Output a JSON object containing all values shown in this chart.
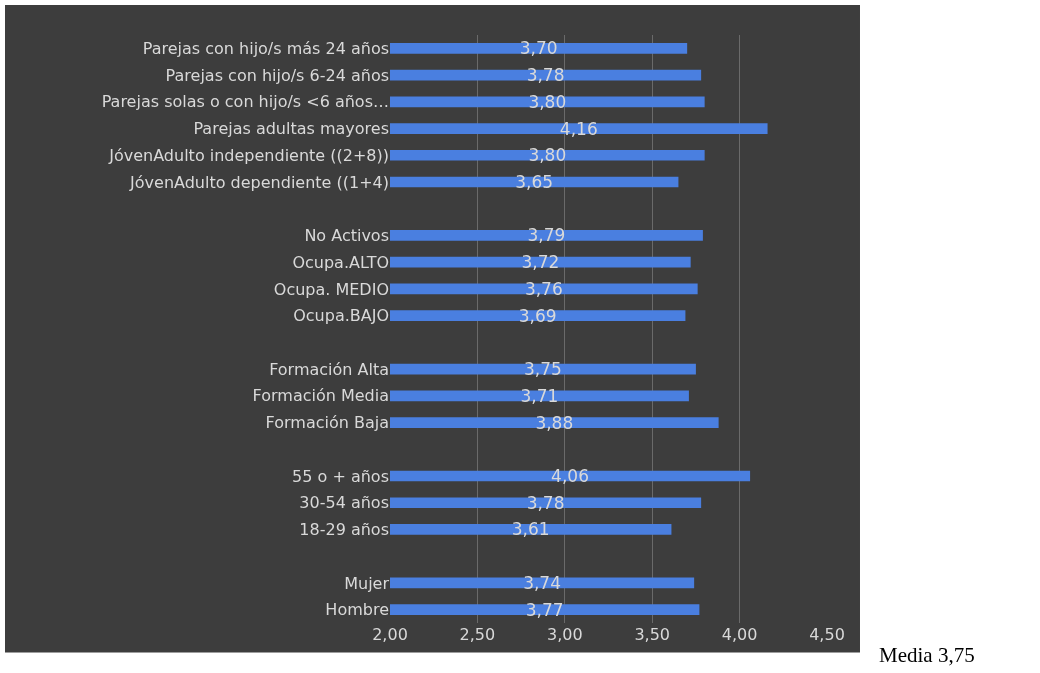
{
  "chart_data": {
    "type": "bar",
    "orientation": "horizontal",
    "categories": [
      "Parejas con hijo/s más 24 años",
      "Parejas con hijo/s 6-24 años",
      "Parejas solas o con hijo/s <6 años…",
      "Parejas adultas mayores",
      "JóvenAdulto independiente ((2+8))",
      "JóvenAdulto dependiente ((1+4)",
      null,
      "No Activos",
      "Ocupa.ALTO",
      "Ocupa. MEDIO",
      "Ocupa.BAJO",
      null,
      "Formación Alta",
      "Formación Media",
      "Formación Baja",
      null,
      "55 o + años",
      "30-54 años",
      "18-29 años",
      null,
      "Mujer",
      "Hombre"
    ],
    "values": [
      3.7,
      3.78,
      3.8,
      4.16,
      3.8,
      3.65,
      null,
      3.79,
      3.72,
      3.76,
      3.69,
      null,
      3.75,
      3.71,
      3.88,
      null,
      4.06,
      3.78,
      3.61,
      null,
      3.74,
      3.77
    ],
    "value_labels": [
      "3,70",
      "3,78",
      "3,80",
      "4,16",
      "3,80",
      "3,65",
      null,
      "3,79",
      "3,72",
      "3,76",
      "3,69",
      null,
      "3,75",
      "3,71",
      "3,88",
      null,
      "4,06",
      "3,78",
      "3,61",
      null,
      "3,74",
      "3,77"
    ],
    "color": "#4a7fe0",
    "xlim": [
      2,
      4.5
    ],
    "xticks": [
      {
        "value": 2,
        "label": "2,00"
      },
      {
        "value": 2.5,
        "label": "2,50"
      },
      {
        "value": 3,
        "label": "3,00"
      },
      {
        "value": 3.5,
        "label": "3,50"
      },
      {
        "value": 4,
        "label": "4,00"
      },
      {
        "value": 4.5,
        "label": "4,50"
      }
    ],
    "grid": "x",
    "annotations": [
      "Media 3,75"
    ]
  }
}
